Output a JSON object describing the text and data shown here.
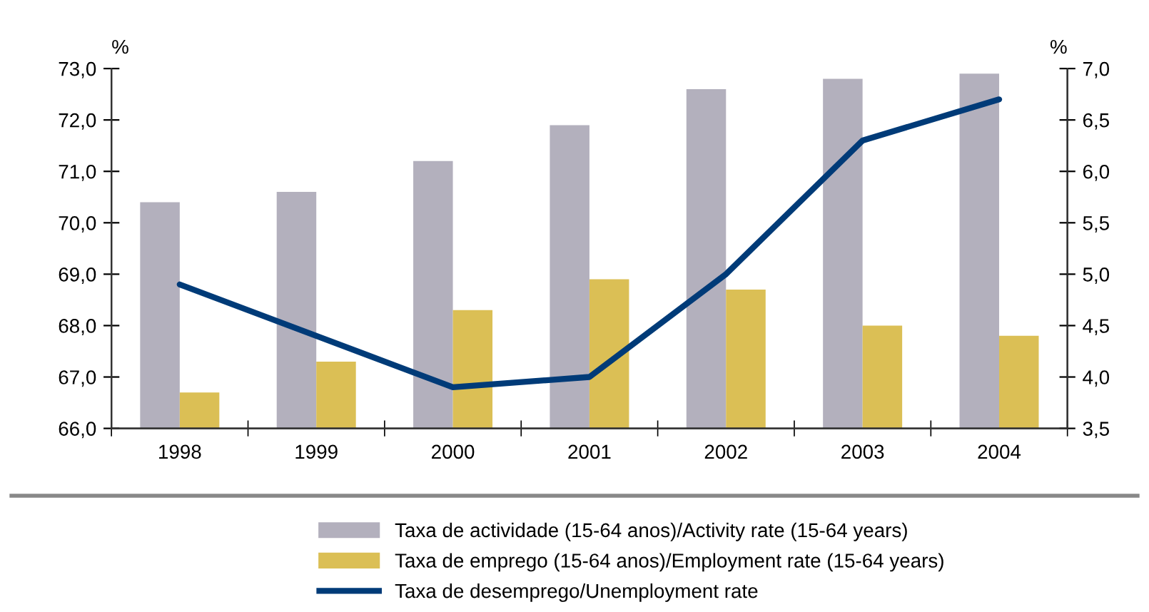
{
  "chart_data": {
    "type": "bar",
    "categories": [
      "1998",
      "1999",
      "2000",
      "2001",
      "2002",
      "2003",
      "2004"
    ],
    "series": [
      {
        "name": "Taxa de actividade (15-64 anos)/Activity rate (15-64 years)",
        "color": "#b3b0bd",
        "values": [
          70.4,
          70.6,
          71.2,
          71.9,
          72.6,
          72.8,
          72.9
        ]
      },
      {
        "name": "Taxa de emprego (15-64 anos)/Employment rate (15-64 years)",
        "color": "#dbbf55",
        "values": [
          66.7,
          67.3,
          68.3,
          68.9,
          68.7,
          68.0,
          67.8
        ]
      },
      {
        "name": "Taxa de desemprego/Unemployment rate",
        "color": "#003b78",
        "type": "line",
        "axis": "y2",
        "values": [
          4.9,
          4.4,
          3.9,
          4.0,
          5.0,
          6.3,
          6.7
        ]
      }
    ],
    "ylabel": "%",
    "y2label": "%",
    "ylim": [
      66,
      73
    ],
    "yticks": [
      {
        "value": 66,
        "label": "66,0"
      },
      {
        "value": 67,
        "label": "67,0"
      },
      {
        "value": 68,
        "label": "68,0"
      },
      {
        "value": 69,
        "label": "69,0"
      },
      {
        "value": 70,
        "label": "70,0"
      },
      {
        "value": 71,
        "label": "71,0"
      },
      {
        "value": 72,
        "label": "72,0"
      },
      {
        "value": 73,
        "label": "73,0"
      }
    ],
    "y2lim": [
      3.5,
      7
    ],
    "y2ticks": [
      {
        "value": 3.5,
        "label": "3,5"
      },
      {
        "value": 4,
        "label": "4,0"
      },
      {
        "value": 4.5,
        "label": "4,5"
      },
      {
        "value": 5,
        "label": "5,0"
      },
      {
        "value": 5.5,
        "label": "5,5"
      },
      {
        "value": 6,
        "label": "6,0"
      },
      {
        "value": 6.5,
        "label": "6,5"
      },
      {
        "value": 7,
        "label": "7,0"
      }
    ],
    "legend": "bottom",
    "grid": false
  }
}
